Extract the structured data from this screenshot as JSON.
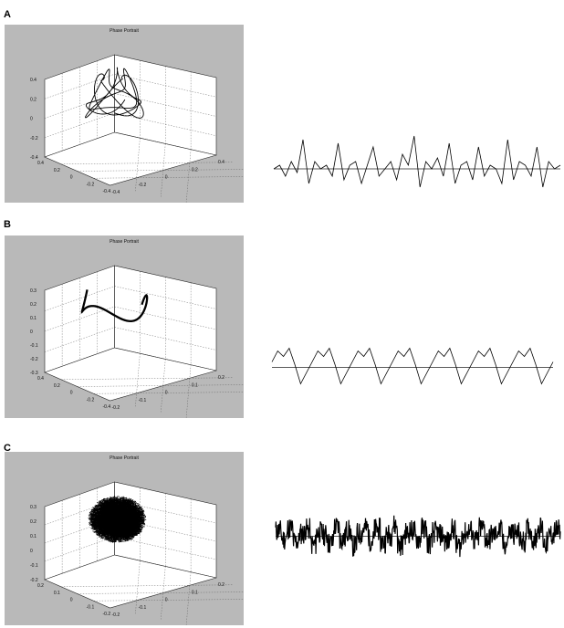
{
  "colors": {
    "plot_background": "#b9b9b9",
    "axes_face": "#ffffff",
    "line": "#000000"
  },
  "panels": [
    {
      "letter": "A",
      "portrait_title": "Phase Portrait",
      "z_ticks": [
        "0.4",
        "0.2",
        "0",
        "-0.2",
        "-0.4"
      ],
      "left_ticks": [
        "0.4",
        "0.2",
        "0",
        "-0.2",
        "-0.4"
      ],
      "right_ticks": [
        "-0.4",
        "-0.2",
        "0",
        "0.2",
        "0.4"
      ]
    },
    {
      "letter": "B",
      "portrait_title": "Phase Portrait",
      "z_ticks": [
        "0.3",
        "0.2",
        "0.1",
        "0",
        "-0.1",
        "-0.2",
        "-0.3"
      ],
      "left_ticks": [
        "0.4",
        "0.2",
        "0",
        "-0.2",
        "-0.4"
      ],
      "right_ticks": [
        "-0.2",
        "-0.1",
        "0",
        "0.1",
        "0.2"
      ]
    },
    {
      "letter": "C",
      "portrait_title": "Phase Portrait",
      "z_ticks": [
        "0.3",
        "0.2",
        "0.1",
        "0",
        "-0.1",
        "-0.2"
      ],
      "left_ticks": [
        "0.2",
        "0.1",
        "0",
        "-0.1",
        "-0.2"
      ],
      "right_ticks": [
        "-0.2",
        "-0.1",
        "0",
        "0.1",
        "0.2"
      ]
    }
  ],
  "chart_data": [
    {
      "type": "line",
      "title": "Phase Portrait",
      "panel": "A",
      "description_kind": "3d phase portrait",
      "zlim": [
        -0.4,
        0.4
      ],
      "xlim": [
        -0.4,
        0.4
      ],
      "ylim": [
        -0.4,
        0.4
      ],
      "grid": true
    },
    {
      "type": "line",
      "panel": "A",
      "description_kind": "time series",
      "series": [
        {
          "values": [
            0.0,
            0.05,
            -0.1,
            0.1,
            -0.05,
            0.4,
            -0.2,
            0.1,
            0.0,
            0.05,
            -0.1,
            0.35,
            -0.15,
            0.05,
            0.1,
            -0.2,
            0.05,
            0.3,
            -0.1,
            0.0,
            0.1,
            -0.15,
            0.2,
            0.05,
            0.45,
            -0.25,
            0.1,
            0.0,
            0.15,
            -0.1,
            0.35,
            -0.2,
            0.05,
            0.1,
            -0.15,
            0.3,
            -0.1,
            0.05,
            0.0,
            -0.2,
            0.4,
            -0.15,
            0.1,
            0.05,
            -0.1,
            0.3,
            -0.25,
            0.1,
            0.0,
            0.05
          ]
        }
      ],
      "grid": false
    },
    {
      "type": "line",
      "title": "Phase Portrait",
      "panel": "B",
      "description_kind": "3d phase portrait",
      "zlim": [
        -0.3,
        0.3
      ],
      "xlim": [
        -0.4,
        0.4
      ],
      "ylim": [
        -0.2,
        0.2
      ],
      "grid": true
    },
    {
      "type": "line",
      "panel": "B",
      "description_kind": "time series",
      "series": [
        {
          "values": [
            0.1,
            0.3,
            0.2,
            0.35,
            0.05,
            -0.3,
            -0.1,
            0.1,
            0.3,
            0.2,
            0.35,
            0.05,
            -0.3,
            -0.1,
            0.1,
            0.3,
            0.2,
            0.35,
            0.05,
            -0.3,
            -0.1,
            0.1,
            0.3,
            0.2,
            0.35,
            0.05,
            -0.3,
            -0.1,
            0.1,
            0.3,
            0.2,
            0.35,
            0.05,
            -0.3,
            -0.1,
            0.1,
            0.3,
            0.2,
            0.35,
            0.05,
            -0.3,
            -0.1,
            0.1,
            0.3,
            0.2,
            0.35,
            0.05,
            -0.3,
            -0.1,
            0.1
          ]
        }
      ],
      "grid": false
    },
    {
      "type": "line",
      "title": "Phase Portrait",
      "panel": "C",
      "description_kind": "3d phase portrait",
      "zlim": [
        -0.2,
        0.3
      ],
      "xlim": [
        -0.2,
        0.2
      ],
      "ylim": [
        -0.2,
        0.2
      ],
      "grid": true
    },
    {
      "type": "line",
      "panel": "C",
      "description_kind": "time series (noisy)",
      "series": [
        {
          "values": [
            0.2,
            -0.1,
            0.3,
            -0.2,
            0.1,
            0.25,
            -0.3,
            0.15,
            0.05,
            -0.25,
            0.35,
            -0.1,
            0.2,
            -0.35,
            0.1,
            0.3,
            -0.15,
            0.25,
            -0.2,
            0.05,
            0.4,
            -0.3,
            0.1,
            0.2,
            -0.1,
            0.3,
            -0.25,
            0.15,
            0.05,
            -0.2,
            0.25,
            -0.35,
            0.1,
            0.2,
            -0.15,
            0.3,
            -0.1,
            0.05,
            0.2,
            -0.3,
            0.15,
            0.1,
            -0.2,
            0.25,
            -0.1,
            0.3,
            -0.25,
            0.05,
            0.2,
            -0.15
          ]
        }
      ],
      "grid": false
    }
  ]
}
